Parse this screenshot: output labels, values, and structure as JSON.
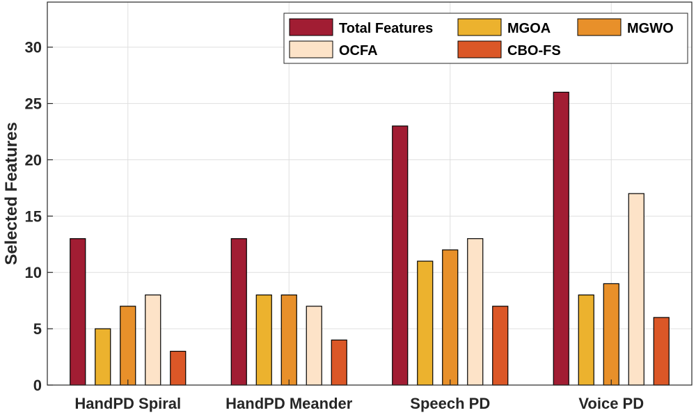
{
  "chart_data": {
    "type": "bar",
    "title": "",
    "xlabel": "",
    "ylabel": "Selected Features",
    "ylim": [
      0,
      34
    ],
    "yticks": [
      0,
      5,
      10,
      15,
      20,
      25,
      30
    ],
    "grid": true,
    "legend_position": "top-right",
    "categories": [
      "HandPD Spiral",
      "HandPD Meander",
      "Speech PD",
      "Voice PD"
    ],
    "series": [
      {
        "name": "Total Features",
        "color": "#a11d33",
        "values": [
          13,
          13,
          23,
          26
        ]
      },
      {
        "name": "MGOA",
        "color": "#ecb22e",
        "values": [
          5,
          8,
          11,
          8
        ]
      },
      {
        "name": "MGWO",
        "color": "#e8902a",
        "values": [
          7,
          8,
          12,
          9
        ]
      },
      {
        "name": "OCFA",
        "color": "#fde3c8",
        "values": [
          8,
          7,
          13,
          17
        ]
      },
      {
        "name": "CBO-FS",
        "color": "#db5727",
        "values": [
          3,
          4,
          7,
          6
        ]
      }
    ]
  }
}
